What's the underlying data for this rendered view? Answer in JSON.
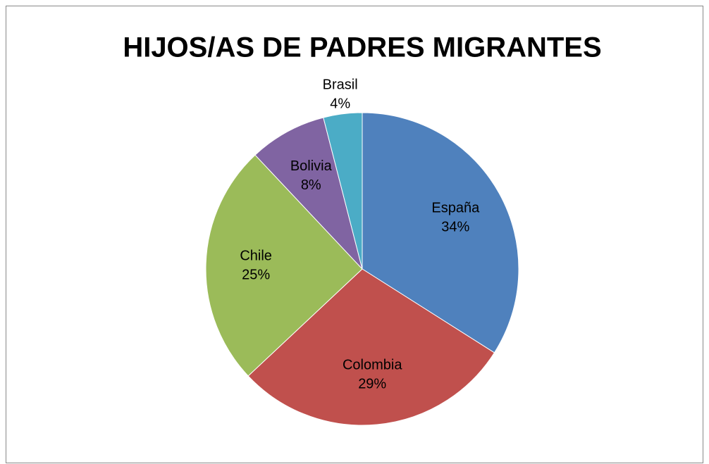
{
  "chart_data": {
    "type": "pie",
    "title": "HIJOS/AS DE PADRES MIGRANTES",
    "categories": [
      "España",
      "Colombia",
      "Chile",
      "Bolivia",
      "Brasil"
    ],
    "values": [
      34,
      29,
      25,
      8,
      4
    ],
    "value_labels": [
      "34%",
      "29%",
      "25%",
      "8%",
      "4%"
    ],
    "colors": [
      "#4f81bd",
      "#c0504d",
      "#9bbb59",
      "#8064a2",
      "#4bacc6"
    ]
  }
}
